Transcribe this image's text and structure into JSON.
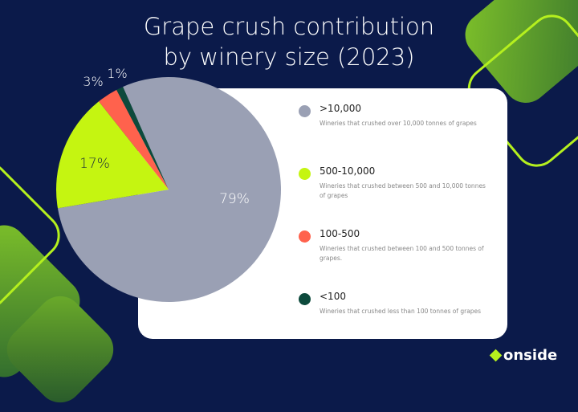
{
  "chart_data": {
    "type": "pie",
    "title": "Grape crush contribution by winery size (2023)",
    "title_lines": [
      "Grape crush contribution",
      "by winery size (2023)"
    ],
    "slices": [
      {
        "label": ">10,000",
        "value": 79,
        "display": "79%",
        "color": "#9aa0b4",
        "description": "Wineries that crushed over 10,000 tonnes of grapes"
      },
      {
        "label": "500-10,000",
        "value": 17,
        "display": "17%",
        "color": "#c5f511",
        "description": "Wineries that crushed between 500 and 10,000 tonnes of grapes"
      },
      {
        "label": "100-500",
        "value": 3,
        "display": "3%",
        "color": "#ff624d",
        "description": "Wineries that crushed between 100 and 500 tonnes of grapes."
      },
      {
        "label": "<100",
        "value": 1,
        "display": "1%",
        "color": "#0d4a3c",
        "description": "Wineries that crushed less than 100 tonnes of grapes"
      }
    ],
    "legend_position": "right"
  },
  "brand": {
    "name": "onside",
    "accent": "#b5f01e",
    "background": "#0b1a4a"
  }
}
